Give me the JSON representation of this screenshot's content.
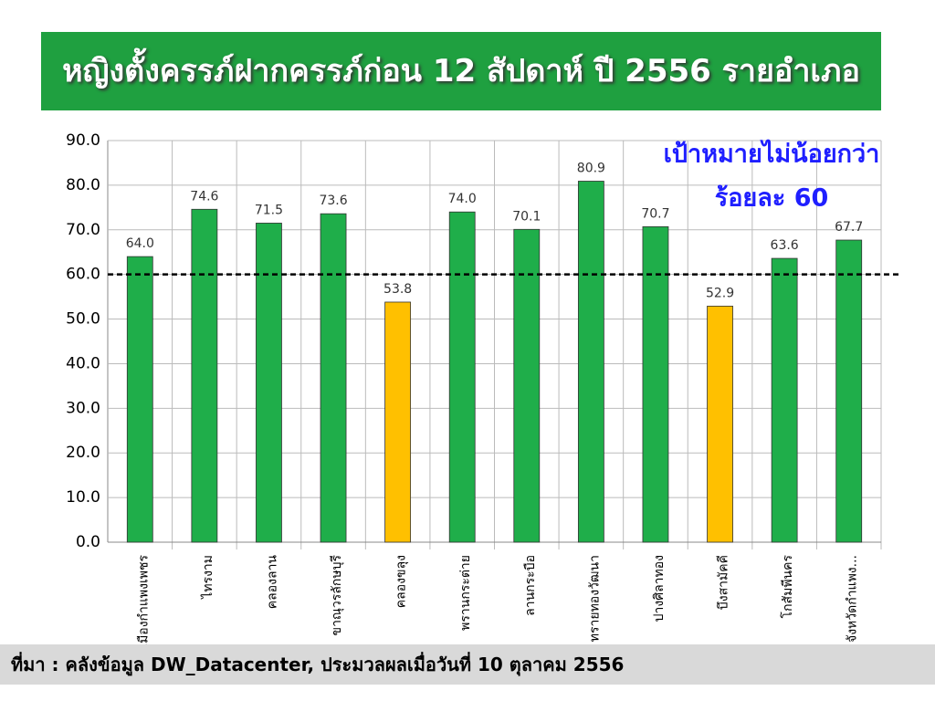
{
  "chart_data": {
    "type": "bar",
    "title": "หญิงตั้งครรภ์ฝากครรภ์ก่อน 12 สัปดาห์ ปี 2556 รายอำเภอ",
    "categories": [
      "เมืองกำแพงเพชร",
      "ไทรงาม",
      "คลองลาน",
      "ขาณุวรลักษบุรี",
      "คลองขลุง",
      "พรานกระต่าย",
      "ลานกระบือ",
      "ทรายทองวัฒนา",
      "ปางศิลาทอง",
      "บึงสามัคคี",
      "โกสัมพีนคร",
      "จังหวัดกำแพง..."
    ],
    "values": [
      64.0,
      74.6,
      71.5,
      73.6,
      53.8,
      74.0,
      70.1,
      80.9,
      70.7,
      52.9,
      63.6,
      67.7
    ],
    "value_labels": [
      "64.0",
      "74.6",
      "71.5",
      "73.6",
      "53.8",
      "74.0",
      "70.1",
      "80.9",
      "70.7",
      "52.9",
      "63.6",
      "67.7"
    ],
    "colors": [
      "#1fae4a",
      "#1fae4a",
      "#1fae4a",
      "#1fae4a",
      "#ffc000",
      "#1fae4a",
      "#1fae4a",
      "#1fae4a",
      "#1fae4a",
      "#ffc000",
      "#1fae4a",
      "#1fae4a"
    ],
    "ylim": [
      0,
      90
    ],
    "yticks": [
      {
        "value": 0,
        "label": "0.0"
      },
      {
        "value": 10,
        "label": "10.0"
      },
      {
        "value": 20,
        "label": "20.0"
      },
      {
        "value": 30,
        "label": "30.0"
      },
      {
        "value": 40,
        "label": "40.0"
      },
      {
        "value": 50,
        "label": "50.0"
      },
      {
        "value": 60,
        "label": "60.0"
      },
      {
        "value": 70,
        "label": "70.0"
      },
      {
        "value": 80,
        "label": "80.0"
      },
      {
        "value": 90,
        "label": "90.0"
      }
    ],
    "grid": true,
    "target": 60,
    "annotation": [
      "เป้าหมายไม่น้อยกว่า",
      "ร้อยละ 60"
    ],
    "source": "ที่มา :  คลังข้อมูล DW_Datacenter, ประมวลผลเมื่อวันที่ 10 ตุลาคม 2556"
  }
}
